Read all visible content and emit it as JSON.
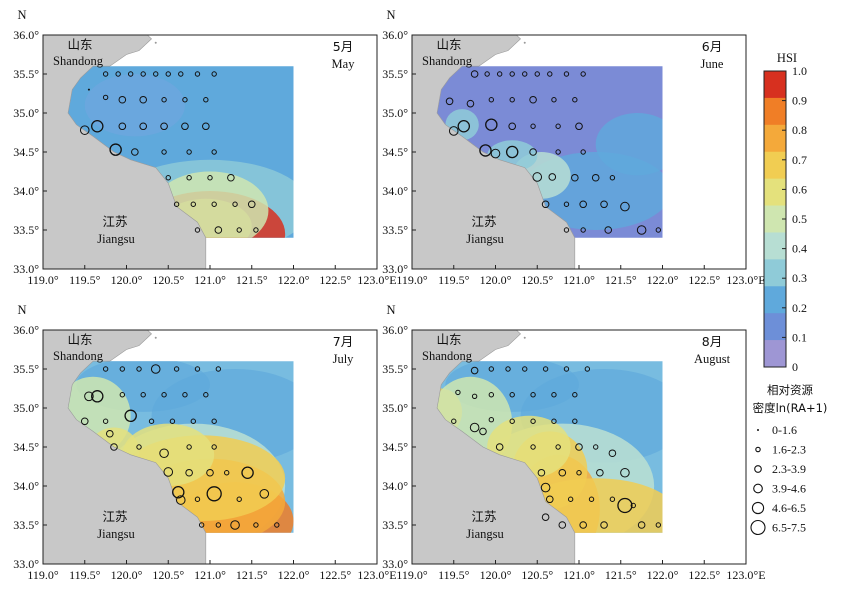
{
  "figure": {
    "north_label": "N",
    "lon_ticks": [
      "119.0°",
      "119.5°",
      "120.0°",
      "120.5°",
      "121.0°",
      "121.5°",
      "122.0°",
      "122.5°",
      "123.0°E"
    ],
    "lat_ticks": [
      "36.0°",
      "35.5°",
      "35.0°",
      "34.5°",
      "34.0°",
      "33.5°",
      "33.0°"
    ],
    "place_labels": {
      "shandong_zh": "山东",
      "shandong_en": "Shandong",
      "jiangsu_zh": "江苏",
      "jiangsu_en": "Jiangsu"
    },
    "panels": [
      {
        "month_zh": "5月",
        "month_en": "May"
      },
      {
        "month_zh": "6月",
        "month_en": "June"
      },
      {
        "month_zh": "7月",
        "month_en": "July"
      },
      {
        "month_zh": "8月",
        "month_en": "August"
      }
    ]
  },
  "colorbar": {
    "title": "HSI",
    "ticks": [
      "1.0",
      "0.9",
      "0.8",
      "0.7",
      "0.6",
      "0.5",
      "0.4",
      "0.3",
      "0.2",
      "0.1",
      "0"
    ],
    "colors": [
      "#d7301f",
      "#f07e26",
      "#f4a93a",
      "#f1cd52",
      "#e4e17c",
      "#cfe6b0",
      "#b7ded3",
      "#8fcbd8",
      "#5fa9dc",
      "#6d8fd8",
      "#9e96d4"
    ]
  },
  "size_legend": {
    "title_line1": "相对资源",
    "title_line2": "密度ln(RA+1)",
    "classes": [
      "0-1.6",
      "1.6-2.3",
      "2.3-3.9",
      "3.9-4.6",
      "4.6-6.5",
      "6.5-7.5"
    ]
  },
  "chart_data": {
    "type": "map",
    "variable": "HSI",
    "legend_variable": "相对资源密度ln(RA+1)",
    "lon_range": [
      119.0,
      123.0
    ],
    "lat_range": [
      33.0,
      36.0
    ],
    "hsi_range": [
      0,
      1
    ],
    "size_classes": [
      "0-1.6",
      "1.6-2.3",
      "2.3-3.9",
      "3.9-4.6",
      "4.6-6.5",
      "6.5-7.5"
    ],
    "panels": [
      {
        "month": "May",
        "stations": [
          {
            "lon": 119.75,
            "lat": 35.5,
            "c": 1
          },
          {
            "lon": 119.9,
            "lat": 35.5,
            "c": 1
          },
          {
            "lon": 120.05,
            "lat": 35.5,
            "c": 1
          },
          {
            "lon": 120.2,
            "lat": 35.5,
            "c": 1
          },
          {
            "lon": 120.35,
            "lat": 35.5,
            "c": 1
          },
          {
            "lon": 120.5,
            "lat": 35.5,
            "c": 1
          },
          {
            "lon": 120.65,
            "lat": 35.5,
            "c": 1
          },
          {
            "lon": 120.85,
            "lat": 35.5,
            "c": 1
          },
          {
            "lon": 121.05,
            "lat": 35.5,
            "c": 1
          },
          {
            "lon": 119.55,
            "lat": 35.3,
            "c": 0
          },
          {
            "lon": 119.75,
            "lat": 35.2,
            "c": 1
          },
          {
            "lon": 119.95,
            "lat": 35.17,
            "c": 2
          },
          {
            "lon": 120.2,
            "lat": 35.17,
            "c": 2
          },
          {
            "lon": 120.45,
            "lat": 35.17,
            "c": 1
          },
          {
            "lon": 120.7,
            "lat": 35.17,
            "c": 1
          },
          {
            "lon": 120.95,
            "lat": 35.17,
            "c": 1
          },
          {
            "lon": 119.5,
            "lat": 34.78,
            "c": 3
          },
          {
            "lon": 119.65,
            "lat": 34.83,
            "c": 4
          },
          {
            "lon": 119.95,
            "lat": 34.83,
            "c": 2
          },
          {
            "lon": 120.2,
            "lat": 34.83,
            "c": 2
          },
          {
            "lon": 120.45,
            "lat": 34.83,
            "c": 2
          },
          {
            "lon": 120.7,
            "lat": 34.83,
            "c": 2
          },
          {
            "lon": 120.95,
            "lat": 34.83,
            "c": 2
          },
          {
            "lon": 119.87,
            "lat": 34.53,
            "c": 4
          },
          {
            "lon": 120.1,
            "lat": 34.5,
            "c": 2
          },
          {
            "lon": 120.45,
            "lat": 34.5,
            "c": 1
          },
          {
            "lon": 120.75,
            "lat": 34.5,
            "c": 1
          },
          {
            "lon": 121.05,
            "lat": 34.5,
            "c": 1
          },
          {
            "lon": 120.5,
            "lat": 34.17,
            "c": 1
          },
          {
            "lon": 120.75,
            "lat": 34.17,
            "c": 1
          },
          {
            "lon": 121.0,
            "lat": 34.17,
            "c": 1
          },
          {
            "lon": 121.25,
            "lat": 34.17,
            "c": 2
          },
          {
            "lon": 120.6,
            "lat": 33.83,
            "c": 1
          },
          {
            "lon": 120.8,
            "lat": 33.83,
            "c": 1
          },
          {
            "lon": 121.05,
            "lat": 33.83,
            "c": 1
          },
          {
            "lon": 121.3,
            "lat": 33.83,
            "c": 1
          },
          {
            "lon": 121.5,
            "lat": 33.83,
            "c": 2
          },
          {
            "lon": 120.85,
            "lat": 33.5,
            "c": 1
          },
          {
            "lon": 121.1,
            "lat": 33.5,
            "c": 2
          },
          {
            "lon": 121.35,
            "lat": 33.5,
            "c": 1
          },
          {
            "lon": 121.55,
            "lat": 33.5,
            "c": 1
          }
        ]
      },
      {
        "month": "June",
        "stations": [
          {
            "lon": 119.75,
            "lat": 35.5,
            "c": 2
          },
          {
            "lon": 119.9,
            "lat": 35.5,
            "c": 1
          },
          {
            "lon": 120.05,
            "lat": 35.5,
            "c": 1
          },
          {
            "lon": 120.2,
            "lat": 35.5,
            "c": 1
          },
          {
            "lon": 120.35,
            "lat": 35.5,
            "c": 1
          },
          {
            "lon": 120.5,
            "lat": 35.5,
            "c": 1
          },
          {
            "lon": 120.65,
            "lat": 35.5,
            "c": 1
          },
          {
            "lon": 120.85,
            "lat": 35.5,
            "c": 1
          },
          {
            "lon": 121.05,
            "lat": 35.5,
            "c": 1
          },
          {
            "lon": 119.45,
            "lat": 35.15,
            "c": 2
          },
          {
            "lon": 119.7,
            "lat": 35.12,
            "c": 2
          },
          {
            "lon": 119.95,
            "lat": 35.17,
            "c": 1
          },
          {
            "lon": 120.2,
            "lat": 35.17,
            "c": 1
          },
          {
            "lon": 120.45,
            "lat": 35.17,
            "c": 2
          },
          {
            "lon": 120.7,
            "lat": 35.17,
            "c": 1
          },
          {
            "lon": 120.95,
            "lat": 35.17,
            "c": 1
          },
          {
            "lon": 119.5,
            "lat": 34.77,
            "c": 3
          },
          {
            "lon": 119.62,
            "lat": 34.83,
            "c": 4
          },
          {
            "lon": 119.95,
            "lat": 34.85,
            "c": 4
          },
          {
            "lon": 120.2,
            "lat": 34.83,
            "c": 2
          },
          {
            "lon": 120.45,
            "lat": 34.83,
            "c": 1
          },
          {
            "lon": 120.75,
            "lat": 34.83,
            "c": 1
          },
          {
            "lon": 121.0,
            "lat": 34.83,
            "c": 2
          },
          {
            "lon": 119.88,
            "lat": 34.52,
            "c": 4
          },
          {
            "lon": 120.0,
            "lat": 34.48,
            "c": 3
          },
          {
            "lon": 120.2,
            "lat": 34.5,
            "c": 4
          },
          {
            "lon": 120.45,
            "lat": 34.5,
            "c": 2
          },
          {
            "lon": 120.75,
            "lat": 34.5,
            "c": 1
          },
          {
            "lon": 121.05,
            "lat": 34.5,
            "c": 1
          },
          {
            "lon": 120.5,
            "lat": 34.18,
            "c": 3
          },
          {
            "lon": 120.68,
            "lat": 34.18,
            "c": 2
          },
          {
            "lon": 120.95,
            "lat": 34.17,
            "c": 2
          },
          {
            "lon": 121.2,
            "lat": 34.17,
            "c": 2
          },
          {
            "lon": 121.4,
            "lat": 34.17,
            "c": 1
          },
          {
            "lon": 120.6,
            "lat": 33.83,
            "c": 2
          },
          {
            "lon": 120.85,
            "lat": 33.83,
            "c": 1
          },
          {
            "lon": 121.05,
            "lat": 33.83,
            "c": 2
          },
          {
            "lon": 121.3,
            "lat": 33.83,
            "c": 2
          },
          {
            "lon": 121.55,
            "lat": 33.8,
            "c": 3
          },
          {
            "lon": 120.85,
            "lat": 33.5,
            "c": 1
          },
          {
            "lon": 121.05,
            "lat": 33.5,
            "c": 1
          },
          {
            "lon": 121.35,
            "lat": 33.5,
            "c": 2
          },
          {
            "lon": 121.75,
            "lat": 33.5,
            "c": 3
          },
          {
            "lon": 121.95,
            "lat": 33.5,
            "c": 1
          }
        ]
      },
      {
        "month": "July",
        "stations": [
          {
            "lon": 119.75,
            "lat": 35.5,
            "c": 1
          },
          {
            "lon": 119.95,
            "lat": 35.5,
            "c": 1
          },
          {
            "lon": 120.15,
            "lat": 35.5,
            "c": 1
          },
          {
            "lon": 120.35,
            "lat": 35.5,
            "c": 3
          },
          {
            "lon": 120.6,
            "lat": 35.5,
            "c": 1
          },
          {
            "lon": 120.85,
            "lat": 35.5,
            "c": 1
          },
          {
            "lon": 121.1,
            "lat": 35.5,
            "c": 1
          },
          {
            "lon": 119.55,
            "lat": 35.15,
            "c": 3
          },
          {
            "lon": 119.65,
            "lat": 35.15,
            "c": 4
          },
          {
            "lon": 119.95,
            "lat": 35.17,
            "c": 1
          },
          {
            "lon": 120.2,
            "lat": 35.17,
            "c": 1
          },
          {
            "lon": 120.45,
            "lat": 35.17,
            "c": 1
          },
          {
            "lon": 120.7,
            "lat": 35.17,
            "c": 1
          },
          {
            "lon": 120.95,
            "lat": 35.17,
            "c": 1
          },
          {
            "lon": 119.5,
            "lat": 34.83,
            "c": 2
          },
          {
            "lon": 119.75,
            "lat": 34.83,
            "c": 1
          },
          {
            "lon": 120.05,
            "lat": 34.9,
            "c": 4
          },
          {
            "lon": 120.3,
            "lat": 34.83,
            "c": 1
          },
          {
            "lon": 120.55,
            "lat": 34.83,
            "c": 1
          },
          {
            "lon": 120.8,
            "lat": 34.83,
            "c": 1
          },
          {
            "lon": 121.05,
            "lat": 34.83,
            "c": 1
          },
          {
            "lon": 119.8,
            "lat": 34.67,
            "c": 2
          },
          {
            "lon": 119.85,
            "lat": 34.5,
            "c": 2
          },
          {
            "lon": 120.15,
            "lat": 34.5,
            "c": 1
          },
          {
            "lon": 120.45,
            "lat": 34.42,
            "c": 3
          },
          {
            "lon": 120.75,
            "lat": 34.5,
            "c": 1
          },
          {
            "lon": 121.05,
            "lat": 34.5,
            "c": 1
          },
          {
            "lon": 120.5,
            "lat": 34.18,
            "c": 3
          },
          {
            "lon": 120.75,
            "lat": 34.17,
            "c": 2
          },
          {
            "lon": 121.0,
            "lat": 34.17,
            "c": 2
          },
          {
            "lon": 121.2,
            "lat": 34.17,
            "c": 1
          },
          {
            "lon": 121.45,
            "lat": 34.17,
            "c": 4
          },
          {
            "lon": 120.62,
            "lat": 33.92,
            "c": 4
          },
          {
            "lon": 120.65,
            "lat": 33.82,
            "c": 3
          },
          {
            "lon": 120.85,
            "lat": 33.83,
            "c": 1
          },
          {
            "lon": 121.05,
            "lat": 33.9,
            "c": 5
          },
          {
            "lon": 121.35,
            "lat": 33.83,
            "c": 1
          },
          {
            "lon": 121.65,
            "lat": 33.9,
            "c": 3
          },
          {
            "lon": 120.9,
            "lat": 33.5,
            "c": 1
          },
          {
            "lon": 121.1,
            "lat": 33.5,
            "c": 1
          },
          {
            "lon": 121.3,
            "lat": 33.5,
            "c": 3
          },
          {
            "lon": 121.55,
            "lat": 33.5,
            "c": 1
          },
          {
            "lon": 121.8,
            "lat": 33.5,
            "c": 1
          }
        ]
      },
      {
        "month": "August",
        "stations": [
          {
            "lon": 119.75,
            "lat": 35.48,
            "c": 2
          },
          {
            "lon": 119.95,
            "lat": 35.5,
            "c": 1
          },
          {
            "lon": 120.15,
            "lat": 35.5,
            "c": 1
          },
          {
            "lon": 120.35,
            "lat": 35.5,
            "c": 1
          },
          {
            "lon": 120.6,
            "lat": 35.5,
            "c": 1
          },
          {
            "lon": 120.85,
            "lat": 35.5,
            "c": 1
          },
          {
            "lon": 121.1,
            "lat": 35.5,
            "c": 1
          },
          {
            "lon": 119.55,
            "lat": 35.2,
            "c": 1
          },
          {
            "lon": 119.75,
            "lat": 35.15,
            "c": 1
          },
          {
            "lon": 119.95,
            "lat": 35.17,
            "c": 1
          },
          {
            "lon": 120.2,
            "lat": 35.17,
            "c": 1
          },
          {
            "lon": 120.45,
            "lat": 35.17,
            "c": 1
          },
          {
            "lon": 120.7,
            "lat": 35.17,
            "c": 1
          },
          {
            "lon": 120.95,
            "lat": 35.17,
            "c": 1
          },
          {
            "lon": 119.5,
            "lat": 34.83,
            "c": 1
          },
          {
            "lon": 119.75,
            "lat": 34.75,
            "c": 3
          },
          {
            "lon": 119.95,
            "lat": 34.85,
            "c": 1
          },
          {
            "lon": 120.2,
            "lat": 34.83,
            "c": 1
          },
          {
            "lon": 120.45,
            "lat": 34.83,
            "c": 1
          },
          {
            "lon": 120.7,
            "lat": 34.83,
            "c": 1
          },
          {
            "lon": 120.95,
            "lat": 34.83,
            "c": 1
          },
          {
            "lon": 119.85,
            "lat": 34.7,
            "c": 2
          },
          {
            "lon": 120.05,
            "lat": 34.5,
            "c": 2
          },
          {
            "lon": 120.45,
            "lat": 34.5,
            "c": 1
          },
          {
            "lon": 120.75,
            "lat": 34.5,
            "c": 1
          },
          {
            "lon": 121.0,
            "lat": 34.5,
            "c": 2
          },
          {
            "lon": 121.2,
            "lat": 34.5,
            "c": 1
          },
          {
            "lon": 121.4,
            "lat": 34.42,
            "c": 2
          },
          {
            "lon": 120.55,
            "lat": 34.17,
            "c": 2
          },
          {
            "lon": 120.8,
            "lat": 34.17,
            "c": 2
          },
          {
            "lon": 121.0,
            "lat": 34.17,
            "c": 1
          },
          {
            "lon": 121.25,
            "lat": 34.17,
            "c": 2
          },
          {
            "lon": 121.55,
            "lat": 34.17,
            "c": 3
          },
          {
            "lon": 120.6,
            "lat": 33.98,
            "c": 3
          },
          {
            "lon": 120.65,
            "lat": 33.83,
            "c": 2
          },
          {
            "lon": 120.9,
            "lat": 33.83,
            "c": 1
          },
          {
            "lon": 121.15,
            "lat": 33.83,
            "c": 1
          },
          {
            "lon": 121.4,
            "lat": 33.83,
            "c": 1
          },
          {
            "lon": 121.65,
            "lat": 33.75,
            "c": 1
          },
          {
            "lon": 120.6,
            "lat": 33.6,
            "c": 2
          },
          {
            "lon": 120.8,
            "lat": 33.5,
            "c": 2
          },
          {
            "lon": 121.05,
            "lat": 33.5,
            "c": 2
          },
          {
            "lon": 121.3,
            "lat": 33.5,
            "c": 2
          },
          {
            "lon": 121.55,
            "lat": 33.75,
            "c": 5
          },
          {
            "lon": 121.75,
            "lat": 33.5,
            "c": 2
          },
          {
            "lon": 121.95,
            "lat": 33.5,
            "c": 1
          }
        ]
      }
    ]
  }
}
